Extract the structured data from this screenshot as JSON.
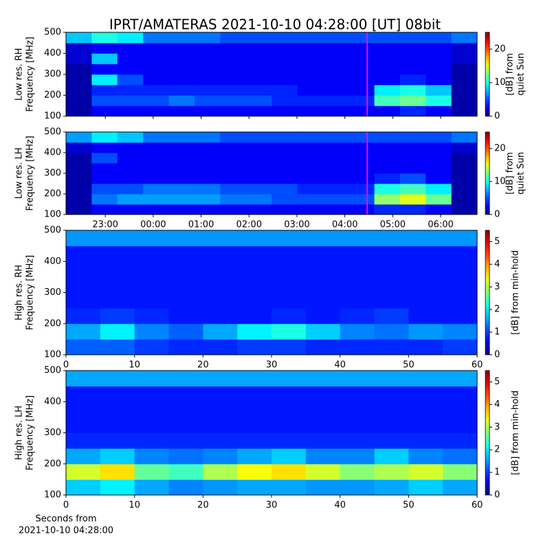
{
  "chart_data": [
    {
      "type": "heatmap",
      "title": "IPRT/AMATERAS 2021-10-10 04:28:00 [UT]   08bit",
      "ylabel": [
        "Low res. RH",
        "Frequency [MHz]"
      ],
      "ylim": [
        100,
        500
      ],
      "yticks": [
        100,
        200,
        300,
        400,
        500
      ],
      "xlim": [
        22.18,
        30.76
      ],
      "xticks": [
        23,
        24,
        25,
        26,
        27,
        28,
        29,
        30
      ],
      "marker_x": 28.4667,
      "marker_color": "#ff00ff",
      "colormap": "jet",
      "zlim": [
        0,
        25
      ],
      "zticks": [
        0,
        10,
        20
      ],
      "colorbar_label": [
        "[dB] from",
        "quiet Sun"
      ],
      "z": [
        [
          1,
          3,
          3,
          3,
          3,
          3,
          3,
          3,
          3,
          3,
          3,
          3,
          3,
          4,
          3,
          1
        ],
        [
          1,
          5,
          5,
          5,
          6,
          5,
          5,
          5,
          4,
          4,
          4,
          4,
          11,
          12,
          10,
          1
        ],
        [
          1,
          4,
          4,
          4,
          4,
          4,
          4,
          4,
          4,
          3,
          3,
          3,
          9,
          10,
          8,
          1
        ],
        [
          1,
          9,
          5,
          3,
          3,
          3,
          3,
          3,
          3,
          3,
          3,
          3,
          3,
          4,
          3,
          1
        ],
        [
          1,
          3,
          3,
          3,
          3,
          3,
          3,
          3,
          3,
          3,
          3,
          3,
          3,
          3,
          3,
          1
        ],
        [
          2,
          8,
          3,
          3,
          3,
          3,
          3,
          3,
          3,
          3,
          3,
          3,
          3,
          3,
          3,
          2
        ],
        [
          2,
          3,
          3,
          3,
          3,
          3,
          3,
          3,
          3,
          3,
          3,
          3,
          3,
          3,
          3,
          2
        ],
        [
          8,
          10,
          9,
          6,
          6,
          6,
          5,
          5,
          5,
          5,
          5,
          5,
          5,
          5,
          5,
          6
        ]
      ]
    },
    {
      "type": "heatmap",
      "ylabel": [
        "Low res. LH",
        "Frequency [MHz]"
      ],
      "ylim": [
        100,
        500
      ],
      "yticks": [
        100,
        200,
        300,
        400,
        500
      ],
      "xlim": [
        22.18,
        30.76
      ],
      "xticks": [
        {
          "value": 23,
          "label": "23:00"
        },
        {
          "value": 24,
          "label": "00:00"
        },
        {
          "value": 25,
          "label": "01:00"
        },
        {
          "value": 26,
          "label": "02:00"
        },
        {
          "value": 27,
          "label": "03:00"
        },
        {
          "value": 28,
          "label": "04:00"
        },
        {
          "value": 29,
          "label": "05:00"
        },
        {
          "value": 30,
          "label": "06:00"
        }
      ],
      "marker_x": 28.4667,
      "marker_color": "#ff00ff",
      "colormap": "jet",
      "zlim": [
        0,
        25
      ],
      "zticks": [
        0,
        10,
        20
      ],
      "colorbar_label": [
        "[dB] from",
        "quiet Sun"
      ],
      "z": [
        [
          1,
          3,
          3,
          3,
          3,
          3,
          3,
          3,
          3,
          3,
          3,
          3,
          4,
          4,
          3,
          1
        ],
        [
          1,
          6,
          7,
          7,
          7,
          7,
          6,
          6,
          5,
          5,
          5,
          5,
          13,
          15,
          12,
          1
        ],
        [
          1,
          5,
          5,
          6,
          6,
          6,
          5,
          5,
          5,
          4,
          4,
          4,
          10,
          11,
          9,
          1
        ],
        [
          1,
          3,
          3,
          3,
          3,
          3,
          3,
          3,
          3,
          3,
          3,
          3,
          4,
          5,
          3,
          1
        ],
        [
          1,
          3,
          3,
          3,
          3,
          3,
          3,
          3,
          3,
          3,
          3,
          3,
          3,
          3,
          3,
          1
        ],
        [
          1,
          5,
          3,
          3,
          3,
          3,
          3,
          3,
          3,
          3,
          3,
          3,
          3,
          3,
          3,
          1
        ],
        [
          2,
          3,
          3,
          3,
          3,
          3,
          3,
          3,
          3,
          3,
          3,
          3,
          3,
          3,
          3,
          2
        ],
        [
          7,
          9,
          8,
          6,
          6,
          6,
          5,
          5,
          5,
          5,
          5,
          5,
          5,
          5,
          5,
          6
        ]
      ]
    },
    {
      "type": "heatmap",
      "ylabel": [
        "High res. RH",
        "Frequency [MHz]"
      ],
      "ylim": [
        100,
        500
      ],
      "yticks": [
        100,
        200,
        300,
        400,
        500
      ],
      "xlim": [
        0,
        60
      ],
      "xticks": [
        0,
        10,
        20,
        30,
        40,
        50,
        60
      ],
      "colormap": "jet",
      "zlim": [
        0,
        5.5
      ],
      "zticks": [
        0,
        1,
        2,
        3,
        4,
        5
      ],
      "colorbar_label": [
        "[dB] from min-hold"
      ],
      "z": [
        [
          1.2,
          1.2,
          1.0,
          0.9,
          0.9,
          1.0,
          1.0,
          0.9,
          0.9,
          0.9,
          0.9,
          1.0
        ],
        [
          1.6,
          2.0,
          1.4,
          1.2,
          1.6,
          2.0,
          2.2,
          1.8,
          1.4,
          1.3,
          1.5,
          1.4
        ],
        [
          0.9,
          1.0,
          0.9,
          0.8,
          0.8,
          0.8,
          0.9,
          0.8,
          0.9,
          1.0,
          0.8,
          0.8
        ],
        [
          0.8,
          0.8,
          0.8,
          0.8,
          0.8,
          0.8,
          0.8,
          0.8,
          0.8,
          0.8,
          0.8,
          0.8
        ],
        [
          0.8,
          0.8,
          0.8,
          0.8,
          0.8,
          0.8,
          0.8,
          0.8,
          0.8,
          0.8,
          0.8,
          0.8
        ],
        [
          0.8,
          0.8,
          0.8,
          0.8,
          0.8,
          0.8,
          0.8,
          0.8,
          0.8,
          0.8,
          0.8,
          0.8
        ],
        [
          0.8,
          0.8,
          0.8,
          0.8,
          0.8,
          0.8,
          0.8,
          0.8,
          0.8,
          0.8,
          0.8,
          0.8
        ],
        [
          1.5,
          1.5,
          1.5,
          1.5,
          1.5,
          1.5,
          1.5,
          1.5,
          1.5,
          1.5,
          1.5,
          1.5
        ]
      ]
    },
    {
      "type": "heatmap",
      "ylabel": [
        "High res. LH",
        "Frequency [MHz]"
      ],
      "ylim": [
        100,
        500
      ],
      "yticks": [
        100,
        200,
        300,
        400,
        500
      ],
      "xlim": [
        0,
        60
      ],
      "xticks": [
        0,
        10,
        20,
        30,
        40,
        50,
        60
      ],
      "colormap": "jet",
      "xlabel": [
        "Seconds from",
        "2021-10-10 04:28:00"
      ],
      "zlim": [
        0,
        5.5
      ],
      "zticks": [
        0,
        1,
        2,
        3,
        4,
        5
      ],
      "colorbar_label": [
        "[dB] from min-hold"
      ],
      "z": [
        [
          1.8,
          2.0,
          1.6,
          1.4,
          1.5,
          1.6,
          1.6,
          1.5,
          1.5,
          1.6,
          1.8,
          1.6
        ],
        [
          3.2,
          3.6,
          2.6,
          2.4,
          3.0,
          3.4,
          3.6,
          3.2,
          2.8,
          3.0,
          3.2,
          2.8
        ],
        [
          1.6,
          1.8,
          1.4,
          1.3,
          1.4,
          1.6,
          1.8,
          1.4,
          1.4,
          1.8,
          1.4,
          1.3
        ],
        [
          0.9,
          0.9,
          0.9,
          0.9,
          0.9,
          0.9,
          0.9,
          0.9,
          0.9,
          0.9,
          0.9,
          0.9
        ],
        [
          0.8,
          0.8,
          0.8,
          0.8,
          0.8,
          0.8,
          0.8,
          0.8,
          0.8,
          0.8,
          0.8,
          0.8
        ],
        [
          0.8,
          0.8,
          0.8,
          0.8,
          0.8,
          0.8,
          0.8,
          0.8,
          0.8,
          0.8,
          0.8,
          0.8
        ],
        [
          0.8,
          0.8,
          0.8,
          0.8,
          0.8,
          0.8,
          0.8,
          0.8,
          0.8,
          0.8,
          0.8,
          0.8
        ],
        [
          1.6,
          1.6,
          1.6,
          1.6,
          1.6,
          1.6,
          1.6,
          1.6,
          1.6,
          1.6,
          1.6,
          1.6
        ]
      ]
    }
  ]
}
